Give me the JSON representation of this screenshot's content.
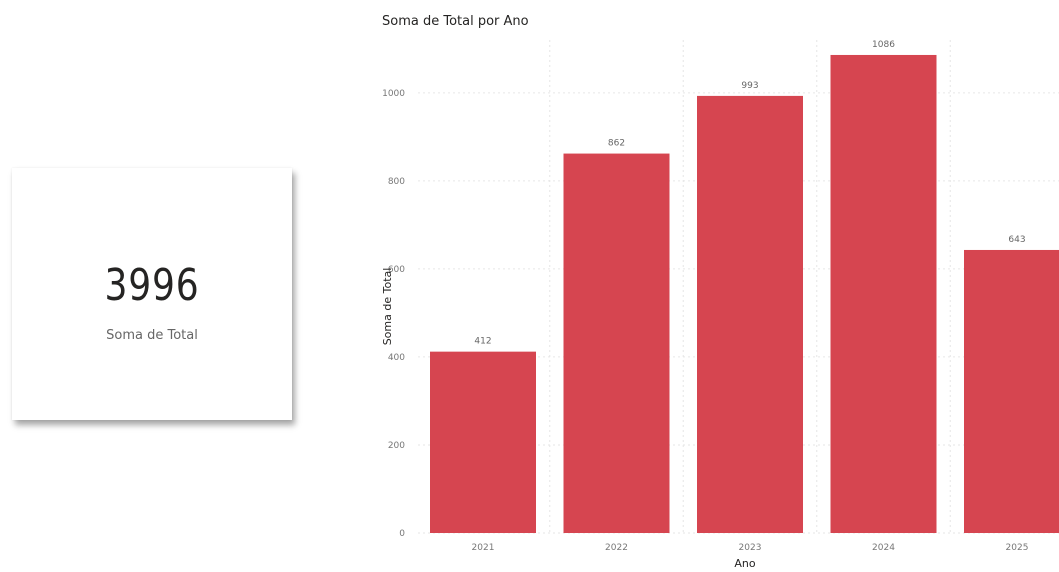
{
  "card": {
    "value": "3996",
    "label": "Soma de Total"
  },
  "chart_data": {
    "type": "bar",
    "title": "Soma de Total por Ano",
    "xlabel": "Ano",
    "ylabel": "Soma de Total",
    "categories": [
      "2021",
      "2022",
      "2023",
      "2024",
      "2025"
    ],
    "values": [
      412,
      862,
      993,
      1086,
      643
    ],
    "ylim": [
      0,
      1120
    ],
    "yticks": [
      0,
      200,
      400,
      600,
      800,
      1000
    ],
    "grid": true,
    "bar_color": "#D64550",
    "grid_color": "#E6E6E6"
  }
}
